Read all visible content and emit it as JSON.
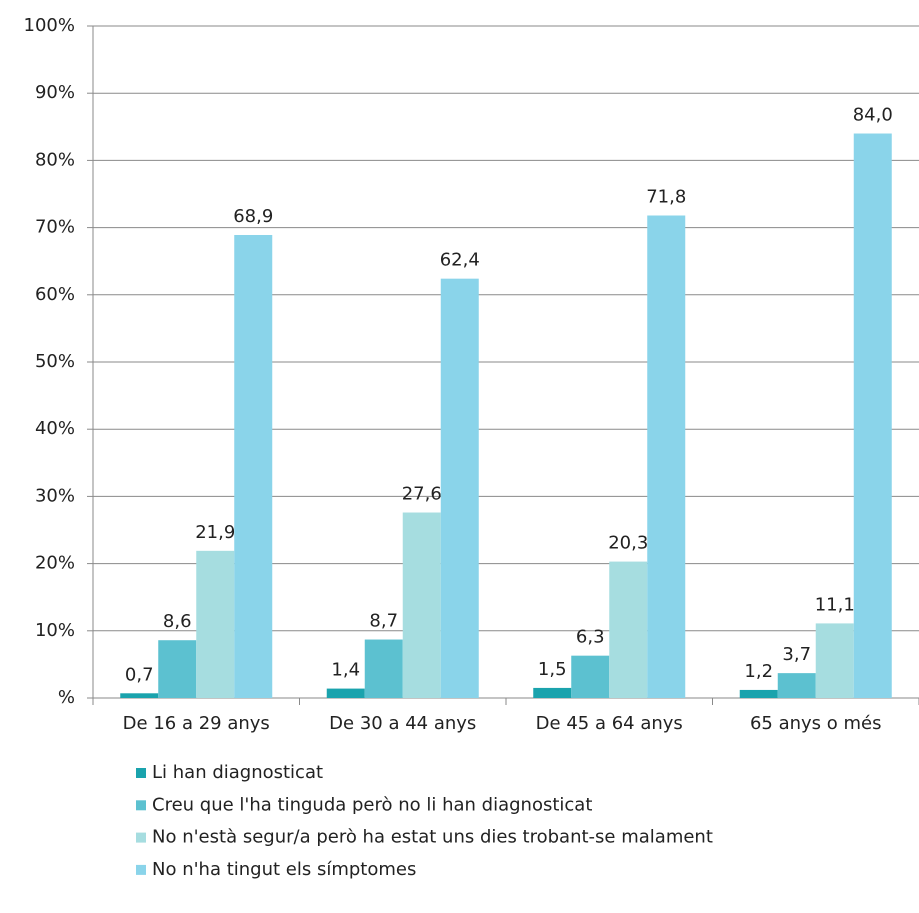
{
  "chart_data": {
    "type": "bar",
    "categories": [
      "De 16 a 29 anys",
      "De 30 a 44 anys",
      "De 45 a 64 anys",
      "65 anys o més"
    ],
    "series": [
      {
        "name": "Li han diagnosticat",
        "color": "#1aa3ad",
        "values": [
          0.7,
          1.4,
          1.5,
          1.2
        ],
        "value_labels": [
          "0,7",
          "1,4",
          "1,5",
          "1,2"
        ]
      },
      {
        "name": "Creu que l'ha tinguda però no li han diagnosticat",
        "color": "#5cc1d0",
        "values": [
          8.6,
          8.7,
          6.3,
          3.7
        ],
        "value_labels": [
          "8,6",
          "8,7",
          "6,3",
          "3,7"
        ]
      },
      {
        "name": "No n'està segur/a però ha estat uns dies trobant-se malament",
        "color": "#a6dde0",
        "values": [
          21.9,
          27.6,
          20.3,
          11.1
        ],
        "value_labels": [
          "21,9",
          "27,6",
          "20,3",
          "11,1"
        ]
      },
      {
        "name": "No n'ha tingut els símptomes",
        "color": "#8ad4ea",
        "values": [
          68.9,
          62.4,
          71.8,
          84.0
        ],
        "value_labels": [
          "68,9",
          "62,4",
          "71,8",
          "84,0"
        ]
      }
    ],
    "ylim": [
      0,
      100
    ],
    "yticks": [
      {
        "value": 0,
        "label": "%"
      },
      {
        "value": 10,
        "label": "10%"
      },
      {
        "value": 20,
        "label": "20%"
      },
      {
        "value": 30,
        "label": "30%"
      },
      {
        "value": 40,
        "label": "40%"
      },
      {
        "value": 50,
        "label": "50%"
      },
      {
        "value": 60,
        "label": "60%"
      },
      {
        "value": 70,
        "label": "70%"
      },
      {
        "value": 80,
        "label": "80%"
      },
      {
        "value": 90,
        "label": "90%"
      },
      {
        "value": 100,
        "label": "100%"
      }
    ],
    "grid": true,
    "legend": "bottom"
  }
}
